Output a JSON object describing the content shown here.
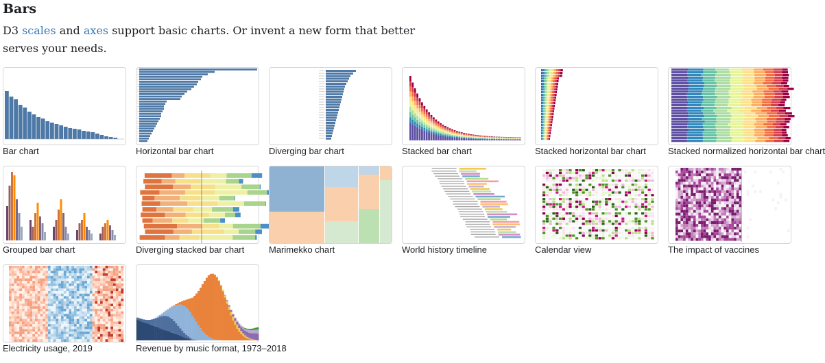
{
  "section": {
    "heading": "Bars",
    "lede_pre": "D3 ",
    "link_scales": "scales",
    "lede_and": " and ",
    "link_axes": "axes",
    "lede_post": " support basic charts. Or invent a new form that better serves your needs."
  },
  "cards": [
    {
      "title": "Bar chart"
    },
    {
      "title": "Horizontal bar chart"
    },
    {
      "title": "Diverging bar chart"
    },
    {
      "title": "Stacked bar chart"
    },
    {
      "title": "Stacked horizontal bar chart"
    },
    {
      "title": "Stacked normalized horizontal bar chart"
    },
    {
      "title": "Grouped bar chart"
    },
    {
      "title": "Diverging stacked bar chart"
    },
    {
      "title": "Marimekko chart"
    },
    {
      "title": "World history timeline"
    },
    {
      "title": "Calendar view"
    },
    {
      "title": "The impact of vaccines"
    },
    {
      "title": "Electricity usage, 2019"
    },
    {
      "title": "Revenue by music format, 1973–2018"
    }
  ],
  "colors": {
    "link": "#3b79b7",
    "steel": "#4e79a7",
    "orange": "#f28e2c"
  }
}
